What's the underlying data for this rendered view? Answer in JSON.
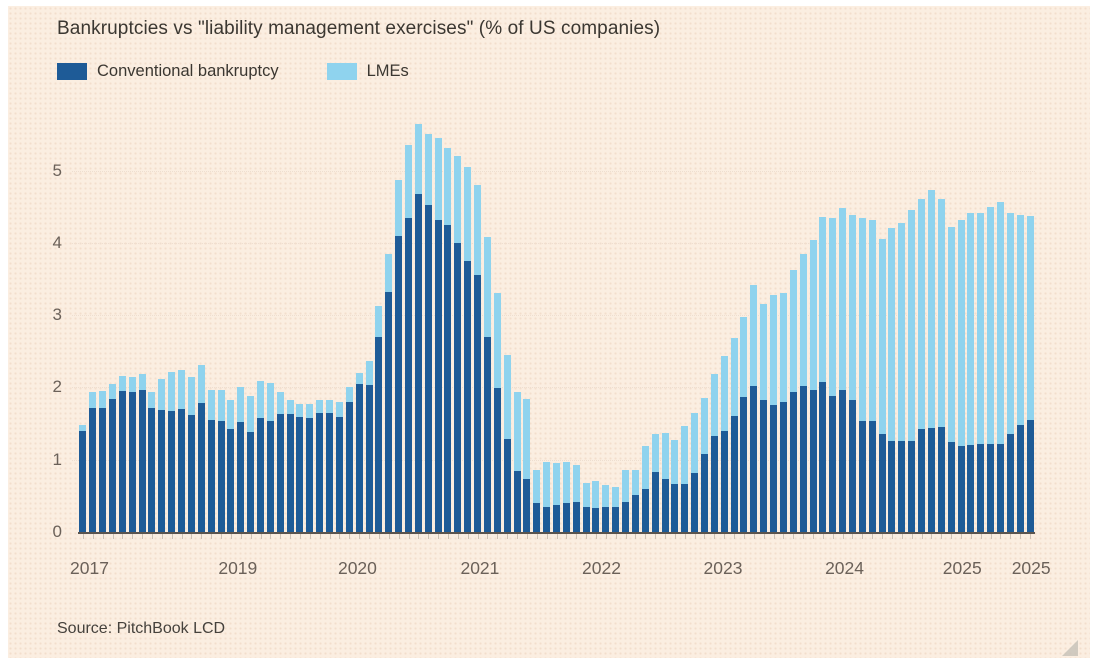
{
  "chart": {
    "title": "Bankruptcies vs \"liability management exercises\" (% of US companies)",
    "source": "Source: PitchBook LCD",
    "colors": {
      "background": "#fbeee1",
      "conventional": "#1e5b97",
      "lme": "#8fd3ee",
      "axis_text": "#6b6159",
      "baseline": "#5b544e"
    }
  },
  "chart_data": {
    "type": "bar",
    "stacked": true,
    "title": "Bankruptcies vs \"liability management exercises\" (% of US companies)",
    "ylabel": "% of US companies",
    "xlabel": "",
    "ylim": [
      0,
      5.8
    ],
    "yticks": [
      0,
      1,
      2,
      3,
      4,
      5
    ],
    "grid": true,
    "legend_position": "top-left",
    "x_axis_labels": [
      {
        "label": "2017",
        "pos": 0.012
      },
      {
        "label": "2019",
        "pos": 0.167
      },
      {
        "label": "2020",
        "pos": 0.292
      },
      {
        "label": "2021",
        "pos": 0.42
      },
      {
        "label": "2022",
        "pos": 0.547
      },
      {
        "label": "2023",
        "pos": 0.674
      },
      {
        "label": "2024",
        "pos": 0.801
      },
      {
        "label": "2025",
        "pos": 0.924
      },
      {
        "label": "2025",
        "pos": 0.996
      }
    ],
    "series": [
      {
        "name": "Conventional bankruptcy",
        "color": "#1e5b97",
        "values": [
          1.4,
          1.71,
          1.71,
          1.84,
          1.95,
          1.93,
          1.96,
          1.71,
          1.69,
          1.68,
          1.7,
          1.62,
          1.79,
          1.55,
          1.54,
          1.42,
          1.52,
          1.39,
          1.58,
          1.54,
          1.63,
          1.63,
          1.59,
          1.58,
          1.64,
          1.64,
          1.59,
          1.8,
          2.05,
          2.03,
          2.7,
          3.32,
          4.1,
          4.35,
          4.68,
          4.52,
          4.32,
          4.25,
          4.0,
          3.75,
          3.55,
          2.7,
          1.99,
          1.28,
          0.84,
          0.74,
          0.4,
          0.35,
          0.38,
          0.4,
          0.42,
          0.34,
          0.33,
          0.35,
          0.35,
          0.42,
          0.51,
          0.6,
          0.83,
          0.74,
          0.66,
          0.66,
          0.82,
          1.08,
          1.33,
          1.4,
          1.6,
          1.87,
          2.02,
          1.83,
          1.76,
          1.8,
          1.93,
          2.02,
          1.96,
          2.07,
          1.88,
          1.97,
          1.83,
          1.53,
          1.53,
          1.36,
          1.26,
          1.26,
          1.26,
          1.43,
          1.44,
          1.45,
          1.25,
          1.19,
          1.2,
          1.22,
          1.22,
          1.22,
          1.36,
          1.48,
          1.55
        ]
      },
      {
        "name": "LMEs",
        "color": "#8fd3ee",
        "values": [
          0.08,
          0.23,
          0.24,
          0.21,
          0.21,
          0.21,
          0.23,
          0.22,
          0.43,
          0.54,
          0.54,
          0.53,
          0.52,
          0.41,
          0.43,
          0.41,
          0.48,
          0.49,
          0.51,
          0.52,
          0.31,
          0.2,
          0.18,
          0.19,
          0.19,
          0.19,
          0.21,
          0.21,
          0.15,
          0.33,
          0.43,
          0.53,
          0.77,
          1.0,
          0.96,
          0.99,
          1.13,
          1.06,
          1.2,
          1.3,
          1.25,
          1.38,
          1.32,
          1.17,
          1.09,
          1.1,
          0.46,
          0.62,
          0.57,
          0.57,
          0.51,
          0.34,
          0.37,
          0.3,
          0.27,
          0.44,
          0.35,
          0.59,
          0.53,
          0.63,
          0.61,
          0.81,
          0.82,
          0.78,
          0.86,
          1.03,
          1.09,
          1.1,
          1.4,
          1.33,
          1.52,
          1.5,
          1.69,
          1.83,
          2.08,
          2.29,
          2.46,
          2.51,
          2.55,
          2.82,
          2.79,
          2.69,
          2.95,
          3.01,
          3.19,
          3.18,
          3.29,
          3.15,
          2.97,
          3.12,
          3.21,
          3.19,
          3.28,
          3.35,
          3.05,
          2.9,
          2.82
        ]
      }
    ]
  }
}
